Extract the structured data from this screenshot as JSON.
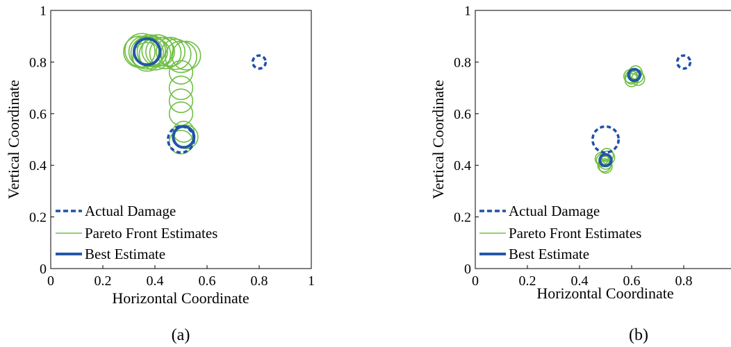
{
  "colors": {
    "actual": "#1f4fa8",
    "pareto": "#6fbf44",
    "best": "#2456a8"
  },
  "chart_data": [
    {
      "type": "scatter",
      "caption": "(a)",
      "xlabel": "Horizontal Coordinate",
      "ylabel": "Vertical Coordinate",
      "xlim": [
        0,
        1
      ],
      "ylim": [
        0,
        1
      ],
      "xticks": [
        "0",
        "0.2",
        "0.4",
        "0.6",
        "0.8",
        "1"
      ],
      "yticks": [
        "0",
        "0.2",
        "0.4",
        "0.6",
        "0.8",
        "1"
      ],
      "legend": [
        "Actual Damage",
        "Pareto Front Estimates",
        "Best Estimate"
      ],
      "legend_position": "bottom-left",
      "actual": [
        {
          "x": 0.8,
          "y": 0.8,
          "r": 0.025
        },
        {
          "x": 0.5,
          "y": 0.5,
          "r": 0.05
        }
      ],
      "pareto": [
        {
          "x": 0.34,
          "y": 0.84,
          "r": 0.06
        },
        {
          "x": 0.35,
          "y": 0.845,
          "r": 0.065
        },
        {
          "x": 0.36,
          "y": 0.84,
          "r": 0.06
        },
        {
          "x": 0.37,
          "y": 0.835,
          "r": 0.062
        },
        {
          "x": 0.38,
          "y": 0.845,
          "r": 0.06
        },
        {
          "x": 0.39,
          "y": 0.84,
          "r": 0.058
        },
        {
          "x": 0.4,
          "y": 0.83,
          "r": 0.06
        },
        {
          "x": 0.41,
          "y": 0.845,
          "r": 0.06
        },
        {
          "x": 0.42,
          "y": 0.84,
          "r": 0.055
        },
        {
          "x": 0.44,
          "y": 0.835,
          "r": 0.06
        },
        {
          "x": 0.46,
          "y": 0.84,
          "r": 0.055
        },
        {
          "x": 0.48,
          "y": 0.83,
          "r": 0.058
        },
        {
          "x": 0.5,
          "y": 0.82,
          "r": 0.06
        },
        {
          "x": 0.52,
          "y": 0.825,
          "r": 0.055
        },
        {
          "x": 0.37,
          "y": 0.82,
          "r": 0.055
        },
        {
          "x": 0.5,
          "y": 0.76,
          "r": 0.045
        },
        {
          "x": 0.5,
          "y": 0.7,
          "r": 0.045
        },
        {
          "x": 0.5,
          "y": 0.65,
          "r": 0.045
        },
        {
          "x": 0.5,
          "y": 0.6,
          "r": 0.045
        },
        {
          "x": 0.51,
          "y": 0.53,
          "r": 0.04
        },
        {
          "x": 0.52,
          "y": 0.51,
          "r": 0.045
        },
        {
          "x": 0.5,
          "y": 0.49,
          "r": 0.045
        }
      ],
      "best": [
        {
          "x": 0.37,
          "y": 0.84,
          "r": 0.05
        },
        {
          "x": 0.51,
          "y": 0.51,
          "r": 0.04
        }
      ]
    },
    {
      "type": "scatter",
      "caption": "(b)",
      "xlabel": "Horizontal Coordinate",
      "ylabel": "Vertical Coordinate",
      "xlim": [
        0,
        1
      ],
      "ylim": [
        0,
        1
      ],
      "xticks": [
        "0",
        "0.2",
        "0.4",
        "0.6",
        "0.8",
        ""
      ],
      "yticks": [
        "0",
        "0.2",
        "0.4",
        "0.6",
        "0.8",
        "1"
      ],
      "legend": [
        "Actual Damage",
        "Pareto Front Estimates",
        "Best Estimate"
      ],
      "legend_position": "bottom-left",
      "actual": [
        {
          "x": 0.8,
          "y": 0.8,
          "r": 0.025
        },
        {
          "x": 0.5,
          "y": 0.5,
          "r": 0.05
        }
      ],
      "pareto": [
        {
          "x": 0.6,
          "y": 0.74,
          "r": 0.025
        },
        {
          "x": 0.61,
          "y": 0.75,
          "r": 0.025
        },
        {
          "x": 0.62,
          "y": 0.745,
          "r": 0.025
        },
        {
          "x": 0.6,
          "y": 0.73,
          "r": 0.025
        },
        {
          "x": 0.615,
          "y": 0.76,
          "r": 0.025
        },
        {
          "x": 0.595,
          "y": 0.745,
          "r": 0.025
        },
        {
          "x": 0.625,
          "y": 0.735,
          "r": 0.025
        },
        {
          "x": 0.49,
          "y": 0.42,
          "r": 0.025
        },
        {
          "x": 0.5,
          "y": 0.41,
          "r": 0.025
        },
        {
          "x": 0.51,
          "y": 0.43,
          "r": 0.025
        },
        {
          "x": 0.495,
          "y": 0.4,
          "r": 0.025
        },
        {
          "x": 0.505,
          "y": 0.44,
          "r": 0.025
        },
        {
          "x": 0.485,
          "y": 0.425,
          "r": 0.025
        },
        {
          "x": 0.5,
          "y": 0.395,
          "r": 0.025
        }
      ],
      "best": [
        {
          "x": 0.61,
          "y": 0.75,
          "r": 0.022
        },
        {
          "x": 0.5,
          "y": 0.42,
          "r": 0.022
        }
      ]
    }
  ]
}
